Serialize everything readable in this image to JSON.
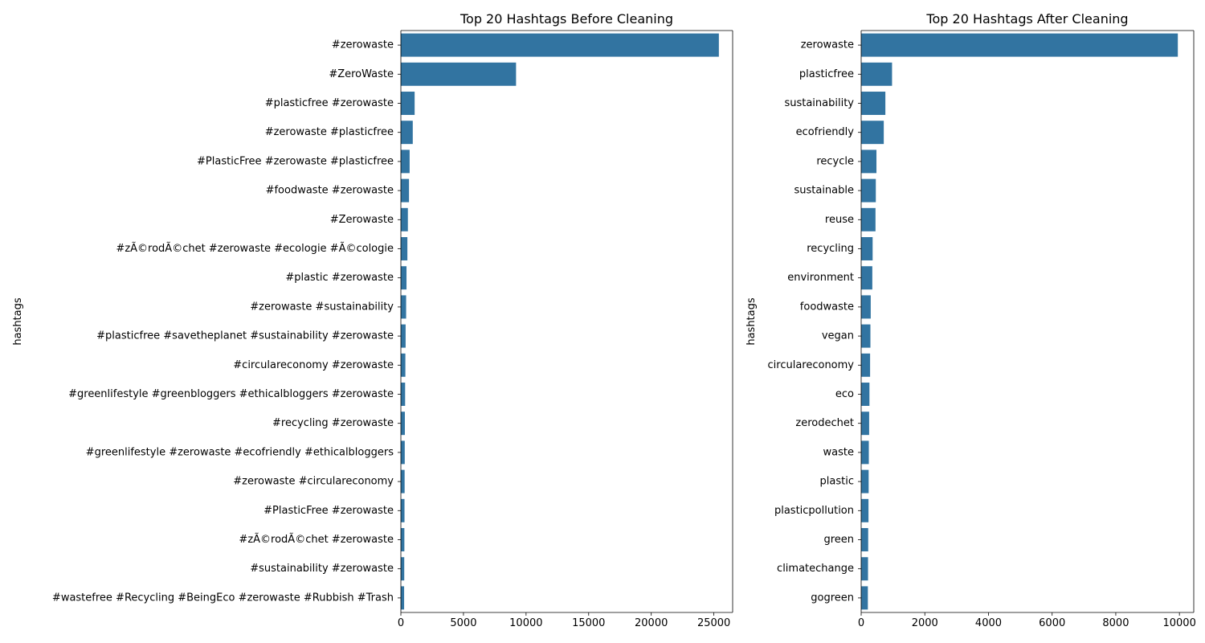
{
  "chart_data": [
    {
      "type": "bar",
      "orientation": "horizontal",
      "title": "Top 20 Hashtags Before Cleaning",
      "xlabel": "",
      "ylabel": "hashtags",
      "xlim": [
        0,
        26500
      ],
      "xticks": [
        0,
        5000,
        10000,
        15000,
        20000,
        25000
      ],
      "xtick_labels": [
        "0",
        "5000",
        "10000",
        "15000",
        "20000",
        "25000"
      ],
      "grid": false,
      "color": "#3274a1",
      "categories": [
        "#zerowaste",
        "#ZeroWaste",
        "#plasticfree #zerowaste",
        "#zerowaste #plasticfree",
        "#PlasticFree #zerowaste #plasticfree",
        "#foodwaste #zerowaste",
        "#Zerowaste",
        "#zÃ©rodÃ©chet #zerowaste #ecologie #Ã©cologie",
        "#plastic #zerowaste",
        "#zerowaste #sustainability",
        "#plasticfree #savetheplanet #sustainability #zerowaste",
        "#circulareconomy #zerowaste",
        "#greenlifestyle #greenbloggers #ethicalbloggers #zerowaste",
        "#recycling #zerowaste",
        "#greenlifestyle #zerowaste #ecofriendly #ethicalbloggers",
        "#zerowaste #circulareconomy",
        "#PlasticFree #zerowaste",
        "#zÃ©rodÃ©chet #zerowaste",
        "#sustainability #zerowaste",
        "#wastefree #Recycling #BeingEco #zerowaste #Rubbish #Trash"
      ],
      "values": [
        25400,
        9200,
        1100,
        950,
        700,
        650,
        560,
        520,
        450,
        420,
        380,
        360,
        340,
        320,
        310,
        300,
        290,
        280,
        270,
        260
      ]
    },
    {
      "type": "bar",
      "orientation": "horizontal",
      "title": "Top 20 Hashtags After Cleaning",
      "xlabel": "",
      "ylabel": "hashtags",
      "xlim": [
        0,
        10450
      ],
      "xticks": [
        0,
        2000,
        4000,
        6000,
        8000,
        10000
      ],
      "xtick_labels": [
        "0",
        "2000",
        "4000",
        "6000",
        "8000",
        "10000"
      ],
      "grid": false,
      "color": "#3274a1",
      "categories": [
        "zerowaste",
        "plasticfree",
        "sustainability",
        "ecofriendly",
        "recycle",
        "sustainable",
        "reuse",
        "recycling",
        "environment",
        "foodwaste",
        "vegan",
        "circulareconomy",
        "eco",
        "zerodechet",
        "waste",
        "plastic",
        "plasticpollution",
        "green",
        "climatechange",
        "gogreen"
      ],
      "values": [
        9950,
        970,
        760,
        710,
        480,
        460,
        450,
        360,
        350,
        300,
        290,
        280,
        260,
        250,
        240,
        235,
        230,
        220,
        215,
        210
      ]
    }
  ]
}
